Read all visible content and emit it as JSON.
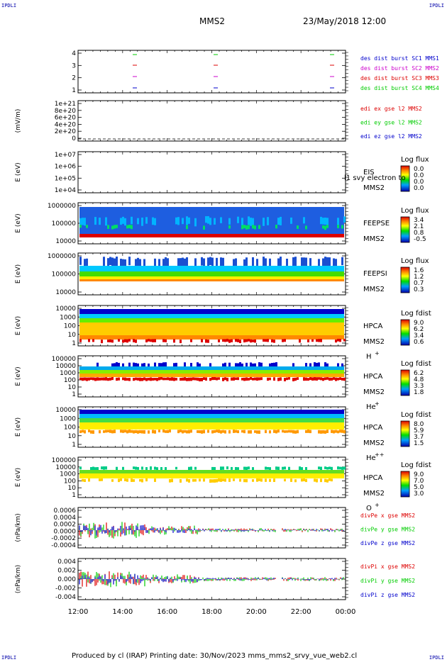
{
  "corners": {
    "top_left": "IPDLI",
    "top_right": "IPDLI",
    "bottom_left": "IPDLI",
    "bottom_right": "IPDLI"
  },
  "header": {
    "spacecraft": "MMS2",
    "datetime": "23/May/2018 12:00"
  },
  "footer": {
    "text": "Produced by cl (IRAP)   Printing date: 30/Nov/2023   mms_mms2_srvy_vue_web2.cl"
  },
  "colors": {
    "red": "#dd0000",
    "green": "#00cc00",
    "blue": "#0000cc",
    "magenta": "#cc00cc"
  },
  "chart_data": [
    {
      "type": "scatter",
      "id": "burst",
      "ylabel": "",
      "yticks": [
        "4",
        "3",
        "2",
        "1"
      ],
      "legend": [
        {
          "name": "des dist burst SC1 MMS1",
          "color": "blue"
        },
        {
          "name": "des dist burst SC2 MMS2",
          "color": "magenta"
        },
        {
          "name": "des dist burst SC3 MMS3",
          "color": "red"
        },
        {
          "name": "des dist burst SC4 MMS4",
          "color": "green"
        }
      ]
    },
    {
      "type": "line",
      "id": "edi",
      "ylabel": "(mV/m)",
      "yticks": [
        "1e+21",
        "8e+20",
        "6e+20",
        "4e+20",
        "2e+20",
        "0"
      ],
      "legend": [
        {
          "name": "edi ex gse l2 MMS2",
          "color": "red"
        },
        {
          "name": "edi ey gse l2 MMS2",
          "color": "green"
        },
        {
          "name": "edi ez gse l2 MMS2",
          "color": "blue"
        }
      ]
    },
    {
      "type": "heatmap",
      "id": "eis",
      "ylabel": "E (eV)",
      "yticks": [
        "1e+07",
        "1e+06",
        "1e+05",
        "1e+04"
      ],
      "labels": [
        "EIS",
        "MMS2"
      ],
      "overlay": "l1 svy electron to",
      "cbar_title": "Log flux",
      "cbar_ticks": [
        "0.0",
        "0.0",
        "0.0",
        "0.0"
      ]
    },
    {
      "type": "heatmap",
      "id": "feepse",
      "ylabel": "E (eV)",
      "yticks": [
        "1000000",
        "100000",
        "10000"
      ],
      "labels": [
        "FEEPSE",
        "MMS2"
      ],
      "cbar_title": "Log flux",
      "cbar_ticks": [
        "3.4",
        "2.1",
        "0.8",
        "-0.5"
      ]
    },
    {
      "type": "heatmap",
      "id": "feepsi",
      "ylabel": "E (eV)",
      "yticks": [
        "1000000",
        "100000",
        "10000"
      ],
      "labels": [
        "FEEPSI",
        "MMS2"
      ],
      "cbar_title": "Log flux",
      "cbar_ticks": [
        "1.6",
        "1.2",
        "0.7",
        "0.3"
      ]
    },
    {
      "type": "heatmap",
      "id": "hpca_h",
      "ylabel": "E (eV)",
      "yticks": [
        "10000",
        "1000",
        "100",
        "10",
        "1"
      ],
      "labels": [
        "HPCA",
        "MMS2"
      ],
      "species": "H",
      "charge": "+",
      "cbar_title": "Log fdist",
      "cbar_ticks": [
        "9.0",
        "6.2",
        "3.4",
        "0.6"
      ]
    },
    {
      "type": "heatmap",
      "id": "hpca_he1",
      "ylabel": "E (eV)",
      "yticks": [
        "100000",
        "10000",
        "1000",
        "100",
        "10",
        "1"
      ],
      "labels": [
        "HPCA",
        "MMS2"
      ],
      "species": "He",
      "charge": "+",
      "cbar_title": "Log fdist",
      "cbar_ticks": [
        "6.2",
        "4.8",
        "3.3",
        "1.8"
      ]
    },
    {
      "type": "heatmap",
      "id": "hpca_he2",
      "ylabel": "E (eV)",
      "yticks": [
        "10000",
        "1000",
        "100",
        "10",
        "1"
      ],
      "labels": [
        "HPCA",
        "MMS2"
      ],
      "species": "He",
      "charge": "++",
      "cbar_title": "Log fdist",
      "cbar_ticks": [
        "8.0",
        "5.9",
        "3.7",
        "1.5"
      ]
    },
    {
      "type": "heatmap",
      "id": "hpca_o",
      "ylabel": "E (eV)",
      "yticks": [
        "100000",
        "10000",
        "1000",
        "100",
        "10",
        "1"
      ],
      "labels": [
        "HPCA",
        "MMS2"
      ],
      "species": "O",
      "charge": "+",
      "cbar_title": "Log fdist",
      "cbar_ticks": [
        "9.0",
        "7.0",
        "5.0",
        "3.0"
      ]
    },
    {
      "type": "line",
      "id": "divpe",
      "ylabel": "(nPa/km)",
      "yticks": [
        "0.0006",
        "0.0004",
        "0.0002",
        "0.0000",
        "-0.0002",
        "-0.0004"
      ],
      "ylim": [
        -0.00045,
        0.0006
      ],
      "legend": [
        {
          "name": "divPe x gse MMS2",
          "color": "red"
        },
        {
          "name": "divPe y gse MMS2",
          "color": "green"
        },
        {
          "name": "divPe z gse MMS2",
          "color": "blue"
        }
      ]
    },
    {
      "type": "line",
      "id": "divpi",
      "ylabel": "(nPa/km)",
      "yticks": [
        "0.004",
        "0.002",
        "0.000",
        "-0.002",
        "-0.004"
      ],
      "ylim": [
        -0.0045,
        0.0045
      ],
      "legend": [
        {
          "name": "divPi x gse MMS2",
          "color": "red"
        },
        {
          "name": "divPi y gse MMS2",
          "color": "green"
        },
        {
          "name": "divPi z gse MMS2",
          "color": "blue"
        }
      ]
    }
  ],
  "xaxis": {
    "ticks": [
      "12:00",
      "14:00",
      "16:00",
      "18:00",
      "20:00",
      "22:00",
      "00:00"
    ]
  }
}
